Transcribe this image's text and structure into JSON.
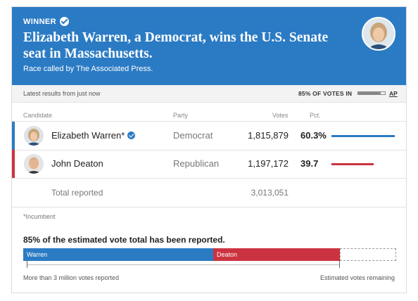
{
  "banner": {
    "winner_label": "WINNER",
    "headline": "Elizabeth Warren, a Democrat, wins the U.S. Senate seat in Massachusetts.",
    "called_by": "Race called by The Associated Press.",
    "color": "#2b7bc4"
  },
  "status": {
    "latest": "Latest results from just now",
    "pct_in": "85% OF VOTES IN",
    "pct_in_value": 0.85,
    "source_link": "AP"
  },
  "table": {
    "headers": {
      "candidate": "Candidate",
      "party": "Party",
      "votes": "Votes",
      "pct": "Pct."
    },
    "rows": [
      {
        "name": "Elizabeth Warren*",
        "party": "Democrat",
        "votes": "1,815,879",
        "pct": "60.3%",
        "pct_value": 60.3,
        "color": "#2b7bc4",
        "winner": true
      },
      {
        "name": "John Deaton",
        "party": "Republican",
        "votes": "1,197,172",
        "pct": "39.7",
        "pct_value": 39.7,
        "color": "#cc3340",
        "winner": false
      }
    ],
    "total_label": "Total reported",
    "total_votes": "3,013,051"
  },
  "footnote": "*Incumbent",
  "estimate": {
    "title": "85% of the estimated vote total has been reported.",
    "segments": [
      {
        "label": "Warren",
        "fraction": 0.51,
        "color": "#2b7bc4"
      },
      {
        "label": "Deaton",
        "fraction": 0.34,
        "color": "#cc3340"
      }
    ],
    "remaining_fraction": 0.15,
    "left_caption": "More than 3 million votes reported",
    "right_caption": "Estimated votes remaining"
  }
}
